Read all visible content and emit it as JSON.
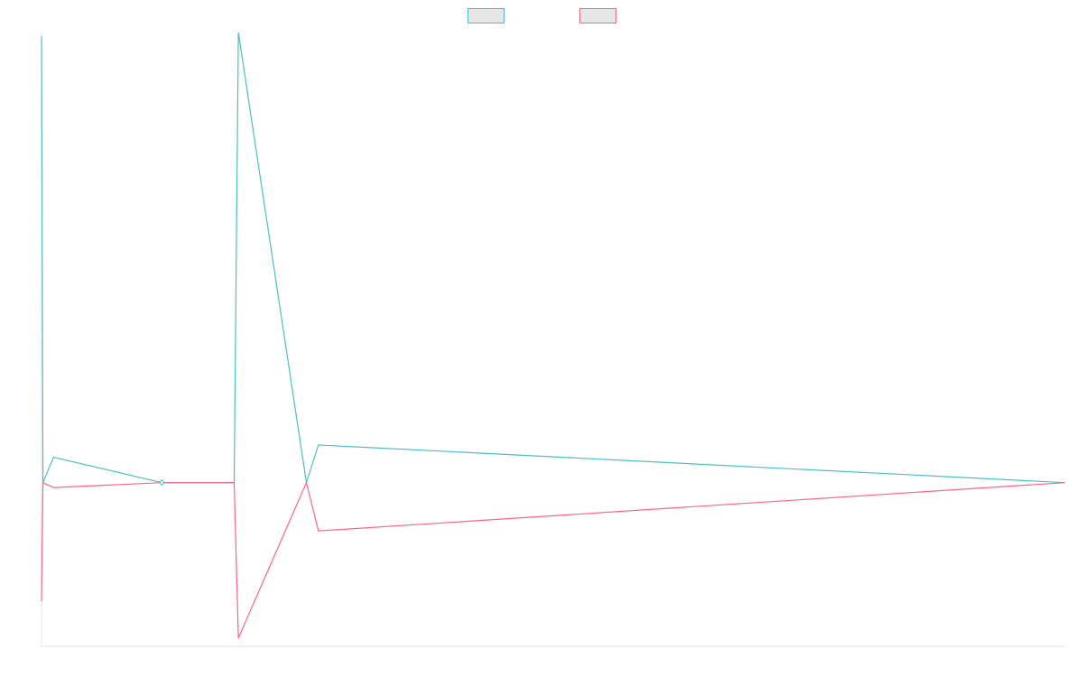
{
  "chart_data": {
    "type": "line",
    "title": "",
    "xlabel": "",
    "ylabel": "",
    "grid": false,
    "legend_position": "top-center",
    "colors": {
      "series_a": "#4bc0c0",
      "series_b": "#ff6384",
      "axis": "#e6e6e6",
      "legend_fill": "#e6e6e6"
    },
    "xlim": [
      0,
      85
    ],
    "ylim": [
      -400,
      1100
    ],
    "x": [
      0,
      0.12,
      1,
      10,
      16,
      16.35,
      22,
      23,
      85
    ],
    "series": [
      {
        "name": "",
        "color_key": "series_a",
        "values": [
          1090,
          0,
          62,
          0,
          0,
          1100,
          0,
          92,
          0
        ]
      },
      {
        "name": "",
        "color_key": "series_b",
        "values": [
          -290,
          0,
          -12,
          0,
          0,
          -380,
          0,
          -118,
          0
        ]
      }
    ],
    "point_markers": [
      {
        "x": 10,
        "y": 0
      }
    ]
  }
}
